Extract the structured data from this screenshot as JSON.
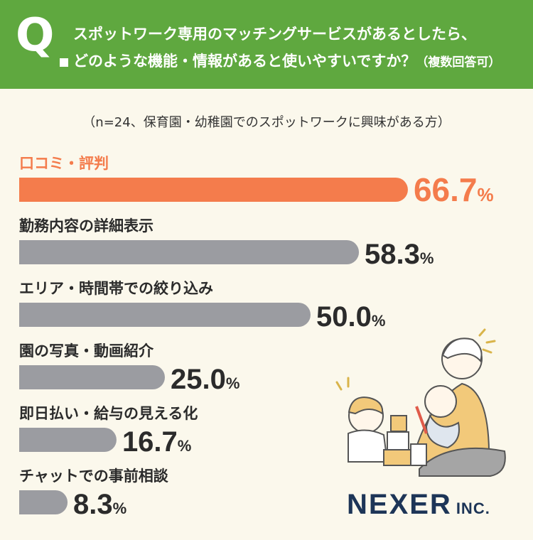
{
  "header": {
    "q_mark": "Q",
    "question_line1": "スポットワーク専用のマッチングサービスがあるとしたら、",
    "question_line2": "どのような機能・情報があると使いやすいですか？",
    "question_note": "（複数回答可）"
  },
  "subtitle": "（n=24、保育園・幼稚園でのスポットワークに興味がある方）",
  "chart_data": {
    "type": "bar",
    "orientation": "horizontal",
    "unit": "%",
    "categories": [
      "口コミ・評判",
      "勤務内容の詳細表示",
      "エリア・時間帯での絞り込み",
      "園の写真・動画紹介",
      "即日払い・給与の見える化",
      "チャットでの事前相談"
    ],
    "values": [
      66.7,
      58.3,
      50.0,
      25.0,
      16.7,
      8.3
    ],
    "value_labels": [
      "66.7",
      "58.3",
      "50.0",
      "25.0",
      "16.7",
      "8.3"
    ],
    "highlight_index": 0,
    "colors": {
      "highlight": "#f47c4c",
      "default": "#9b9ca1",
      "highlight_text": "#f47c4c",
      "default_text": "#2b2b2b"
    }
  },
  "logo": {
    "name": "NEXER",
    "suffix": "INC."
  },
  "colors": {
    "header_bg": "#5fa83f",
    "page_bg": "#fbf8ec",
    "logo": "#1d3557"
  }
}
